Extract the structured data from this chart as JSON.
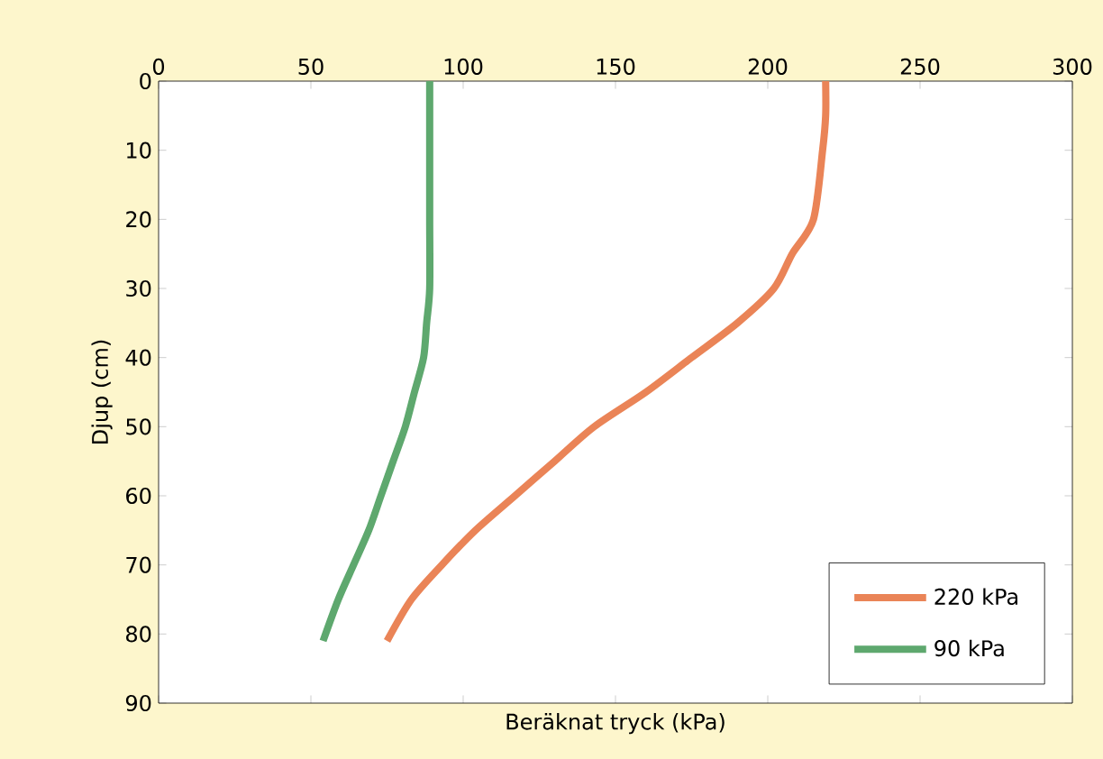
{
  "chart_data": {
    "type": "line",
    "xlabel": "Beräknat tryck (kPa)",
    "ylabel": "Djup (cm)",
    "xlim": [
      0,
      300
    ],
    "xticks": [
      0,
      50,
      100,
      150,
      200,
      250,
      300
    ],
    "ylim": [
      90,
      0
    ],
    "yticks": [
      0,
      10,
      20,
      30,
      40,
      50,
      60,
      70,
      80,
      90
    ],
    "legend": "bottom right",
    "grid": false,
    "marker": "none",
    "line_style": "solid",
    "series": [
      {
        "name": "220 kPa",
        "color": "#ea8457",
        "x": [
          219,
          219,
          218,
          215,
          208,
          202,
          190,
          175,
          160,
          143,
          130,
          117,
          104,
          93,
          83,
          75
        ],
        "values": [
          0,
          5,
          10,
          20,
          25,
          30,
          35,
          40,
          45,
          50,
          55,
          60,
          65,
          70,
          75,
          81
        ]
      },
      {
        "name": "90 kPa",
        "color": "#5ea86e",
        "x": [
          89,
          89,
          89,
          89,
          88,
          87,
          84,
          81,
          77,
          73,
          69,
          64,
          59,
          54
        ],
        "values": [
          0,
          10,
          20,
          30,
          35,
          40,
          45,
          50,
          55,
          60,
          65,
          70,
          75,
          81
        ]
      }
    ]
  }
}
